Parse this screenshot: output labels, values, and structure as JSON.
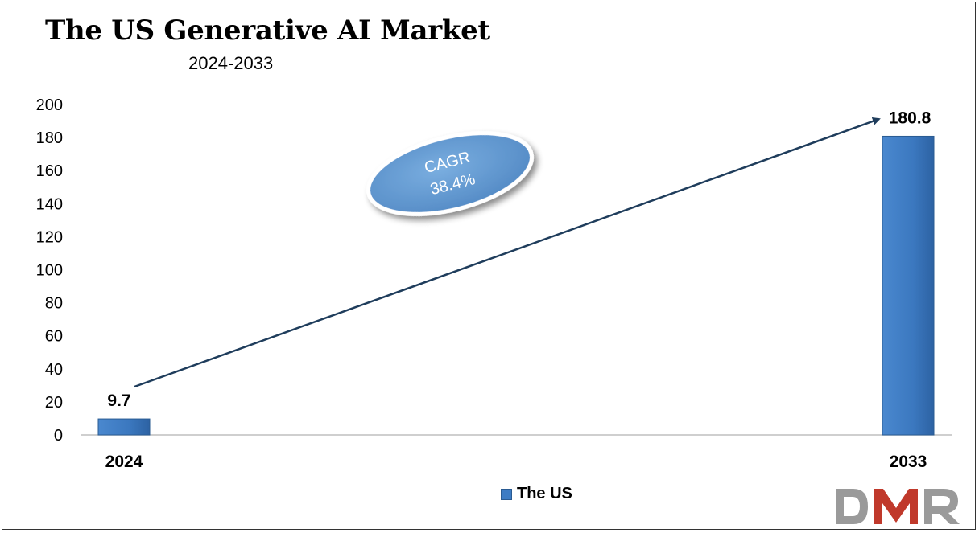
{
  "chart_data": {
    "type": "bar",
    "title": "The US Generative AI Market",
    "subtitle": "2024-2033",
    "categories": [
      "2024",
      "2033"
    ],
    "series": [
      {
        "name": "The US",
        "values": [
          9.7,
          180.8
        ],
        "color": "#3d7cc4"
      }
    ],
    "data_labels": [
      "9.7",
      "180.8"
    ],
    "ylim": [
      0,
      200
    ],
    "yticks": [
      "0",
      "20",
      "40",
      "60",
      "80",
      "100",
      "120",
      "140",
      "160",
      "180",
      "200"
    ],
    "grid": false,
    "legend_position": "bottom",
    "annotation": {
      "line1": "CAGR",
      "line2": "38.4%",
      "color": "#5b95cf"
    }
  },
  "legend": {
    "label": "The US"
  },
  "logo": {
    "text": "DMR",
    "colors": {
      "d": "#9a9a9a",
      "m": "#c0392b",
      "r": "#9a9a9a"
    }
  }
}
